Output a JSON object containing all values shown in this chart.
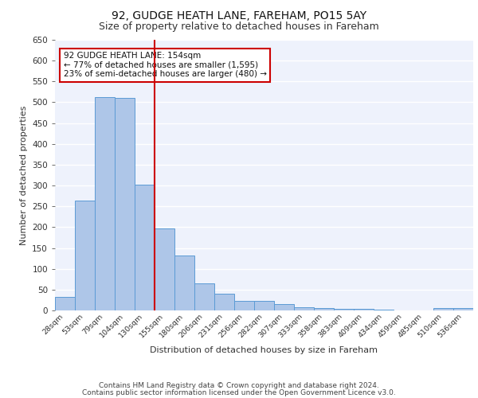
{
  "title": "92, GUDGE HEATH LANE, FAREHAM, PO15 5AY",
  "subtitle": "Size of property relative to detached houses in Fareham",
  "xlabel": "Distribution of detached houses by size in Fareham",
  "ylabel": "Number of detached properties",
  "categories": [
    "28sqm",
    "53sqm",
    "79sqm",
    "104sqm",
    "130sqm",
    "155sqm",
    "180sqm",
    "206sqm",
    "231sqm",
    "256sqm",
    "282sqm",
    "307sqm",
    "333sqm",
    "358sqm",
    "383sqm",
    "409sqm",
    "434sqm",
    "459sqm",
    "485sqm",
    "510sqm",
    "536sqm"
  ],
  "values": [
    33,
    263,
    512,
    510,
    302,
    197,
    132,
    65,
    40,
    23,
    23,
    15,
    8,
    5,
    3,
    3,
    1,
    0,
    0,
    5,
    5
  ],
  "bar_color": "#aec6e8",
  "bar_edge_color": "#5b9bd5",
  "background_color": "#eef2fc",
  "grid_color": "#ffffff",
  "vline_color": "#cc0000",
  "annotation_text": "92 GUDGE HEATH LANE: 154sqm\n← 77% of detached houses are smaller (1,595)\n23% of semi-detached houses are larger (480) →",
  "annotation_box_color": "#cc0000",
  "ylim": [
    0,
    650
  ],
  "yticks": [
    0,
    50,
    100,
    150,
    200,
    250,
    300,
    350,
    400,
    450,
    500,
    550,
    600,
    650
  ],
  "footer_line1": "Contains HM Land Registry data © Crown copyright and database right 2024.",
  "footer_line2": "Contains public sector information licensed under the Open Government Licence v3.0.",
  "title_fontsize": 10,
  "subtitle_fontsize": 9,
  "footer_fontsize": 6.5
}
